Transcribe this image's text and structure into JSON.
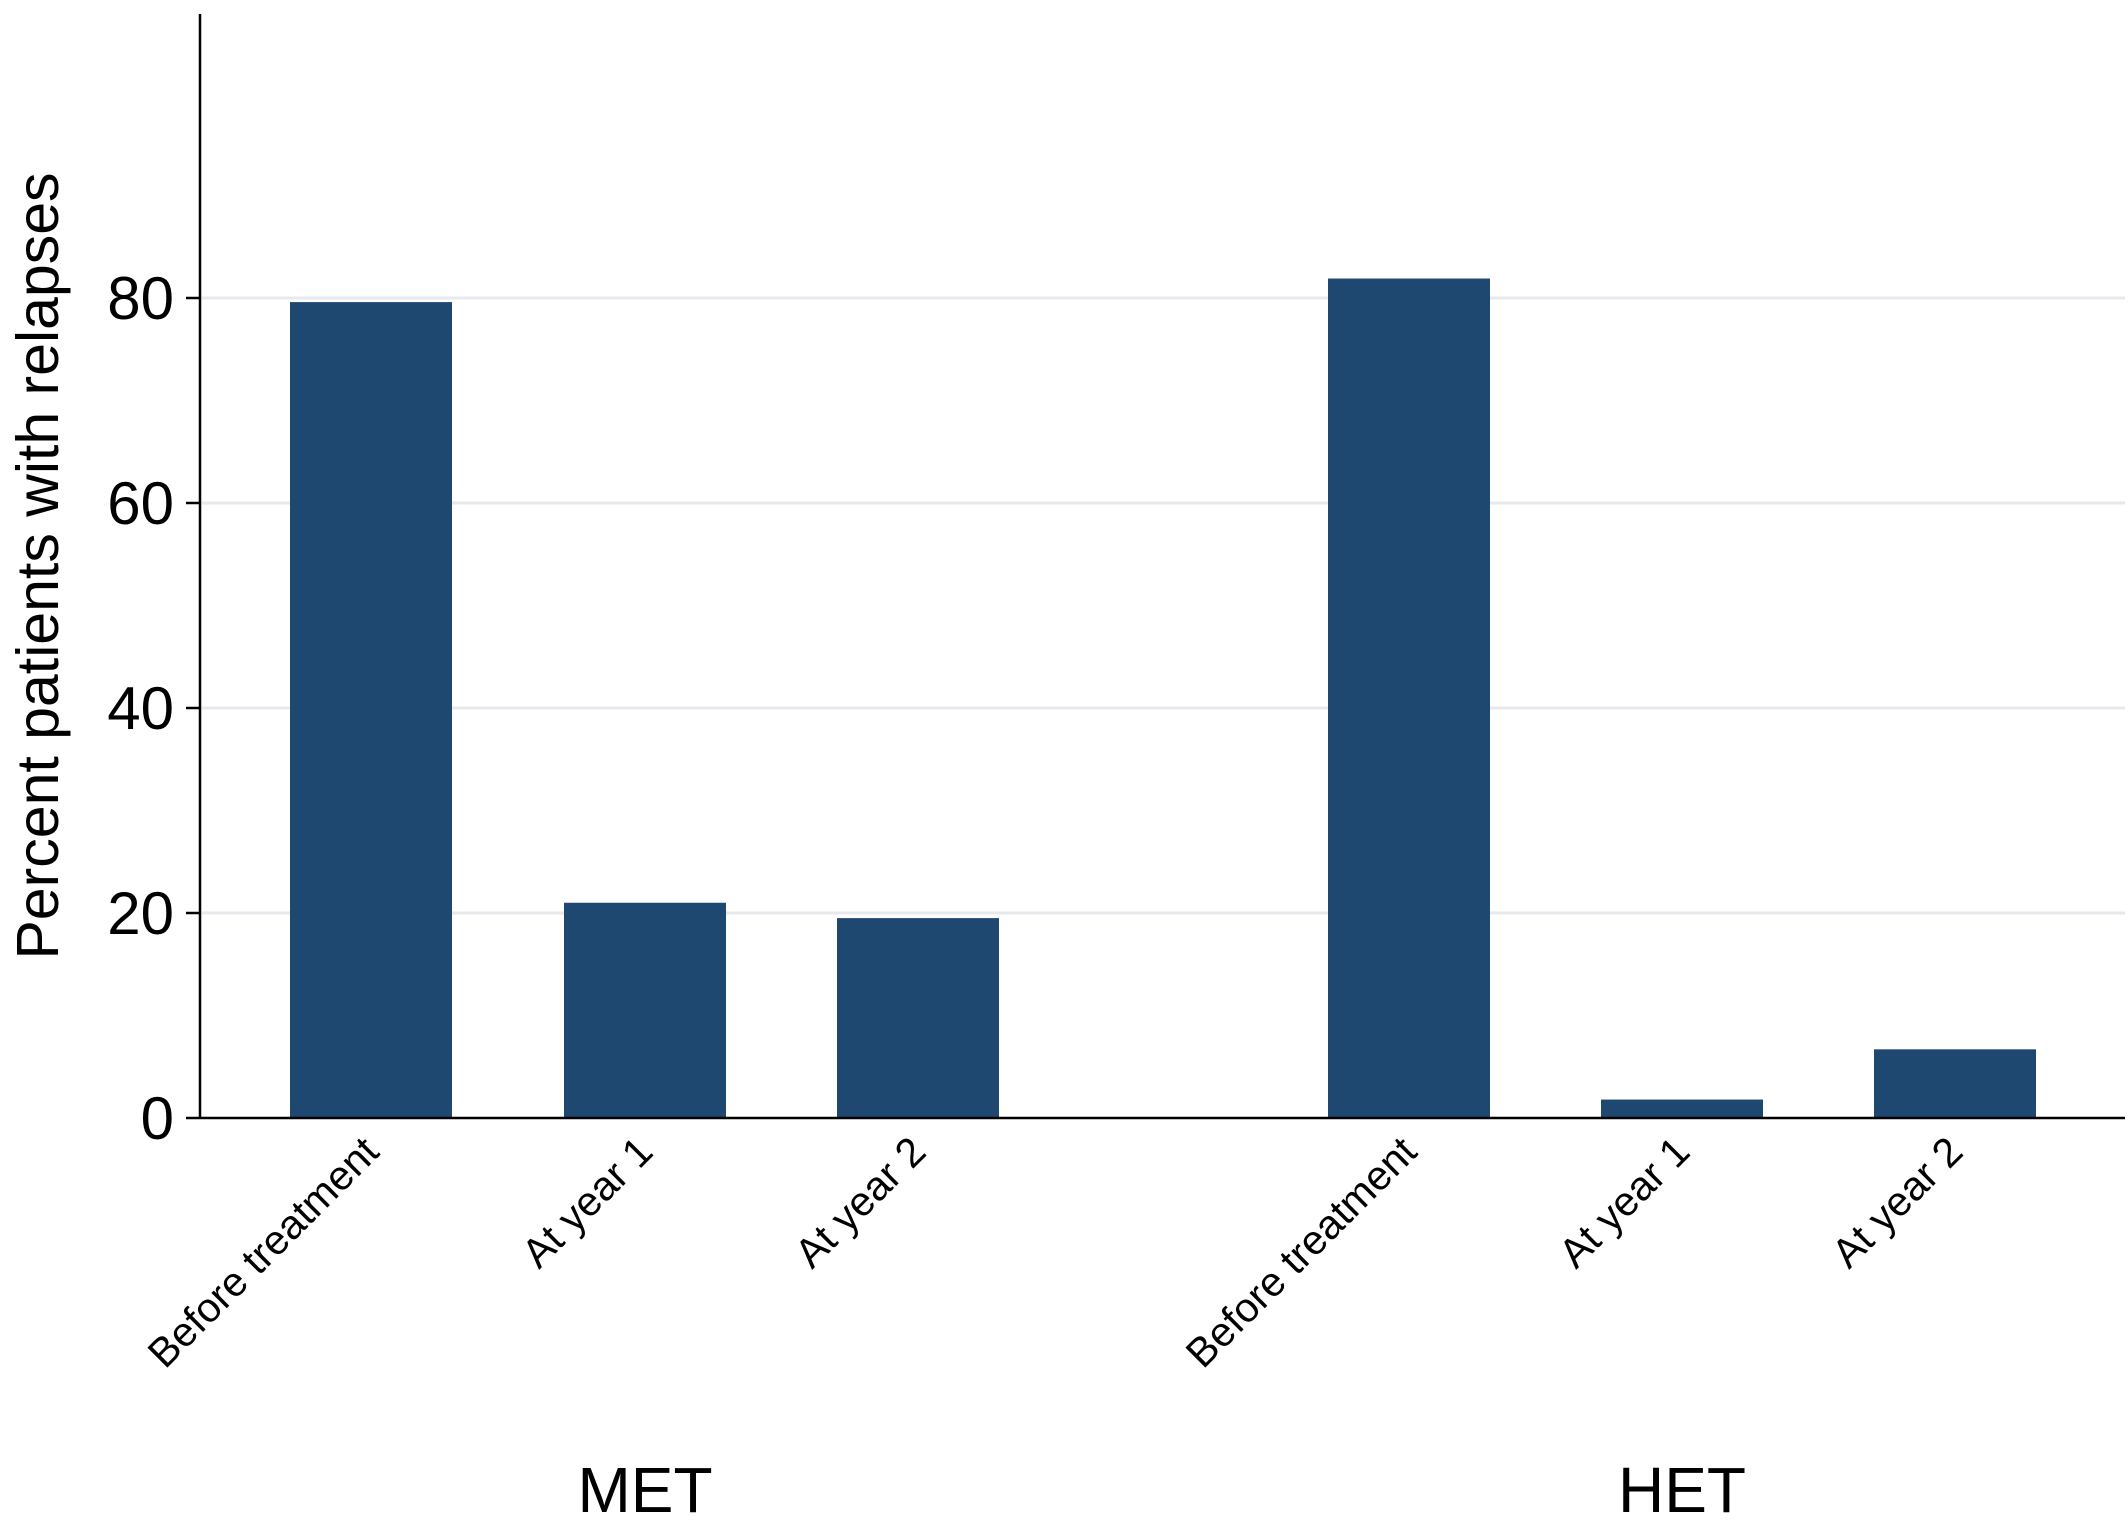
{
  "chart_data": {
    "type": "bar",
    "title": "",
    "ylabel": "Percent patients with relapses",
    "xlabel": "",
    "ylim": [
      0,
      85
    ],
    "yticks": [
      0,
      20,
      40,
      60,
      80
    ],
    "grid": true,
    "bar_color": "#1f4870",
    "grid_color": "#e6eaee",
    "groups": [
      {
        "name": "MET",
        "categories": [
          "Before treatment",
          "At year 1",
          "At year 2"
        ],
        "values": [
          79.6,
          21.0,
          19.5
        ]
      },
      {
        "name": "HET",
        "categories": [
          "Before treatment",
          "At year 1",
          "At year 2"
        ],
        "values": [
          81.9,
          1.8,
          6.7
        ]
      }
    ]
  }
}
